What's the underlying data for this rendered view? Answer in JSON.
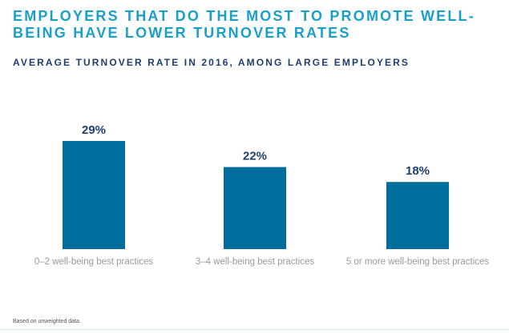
{
  "title": "EMPLOYERS THAT DO THE MOST TO PROMOTE WELL-BEING HAVE LOWER TURNOVER RATES",
  "footnote": "Based on unweighted data.",
  "colors": {
    "title": "#1aa0c8",
    "subtitle": "#1f3e6e",
    "bar": "#006e9c",
    "label": "#9a9a9a",
    "value": "#1f3e6e"
  },
  "chart_data": {
    "type": "bar",
    "title": "AVERAGE TURNOVER RATE IN 2016, AMONG LARGE EMPLOYERS",
    "categories": [
      "0–2 well-being best practices",
      "3–4 well-being best practices",
      "5 or more well-being best practices"
    ],
    "values": [
      29,
      22,
      18
    ],
    "value_labels": [
      "29%",
      "22%",
      "18%"
    ],
    "xlabel": "",
    "ylabel": "",
    "ylim": [
      0,
      29
    ],
    "grid": false,
    "legend": "none"
  }
}
